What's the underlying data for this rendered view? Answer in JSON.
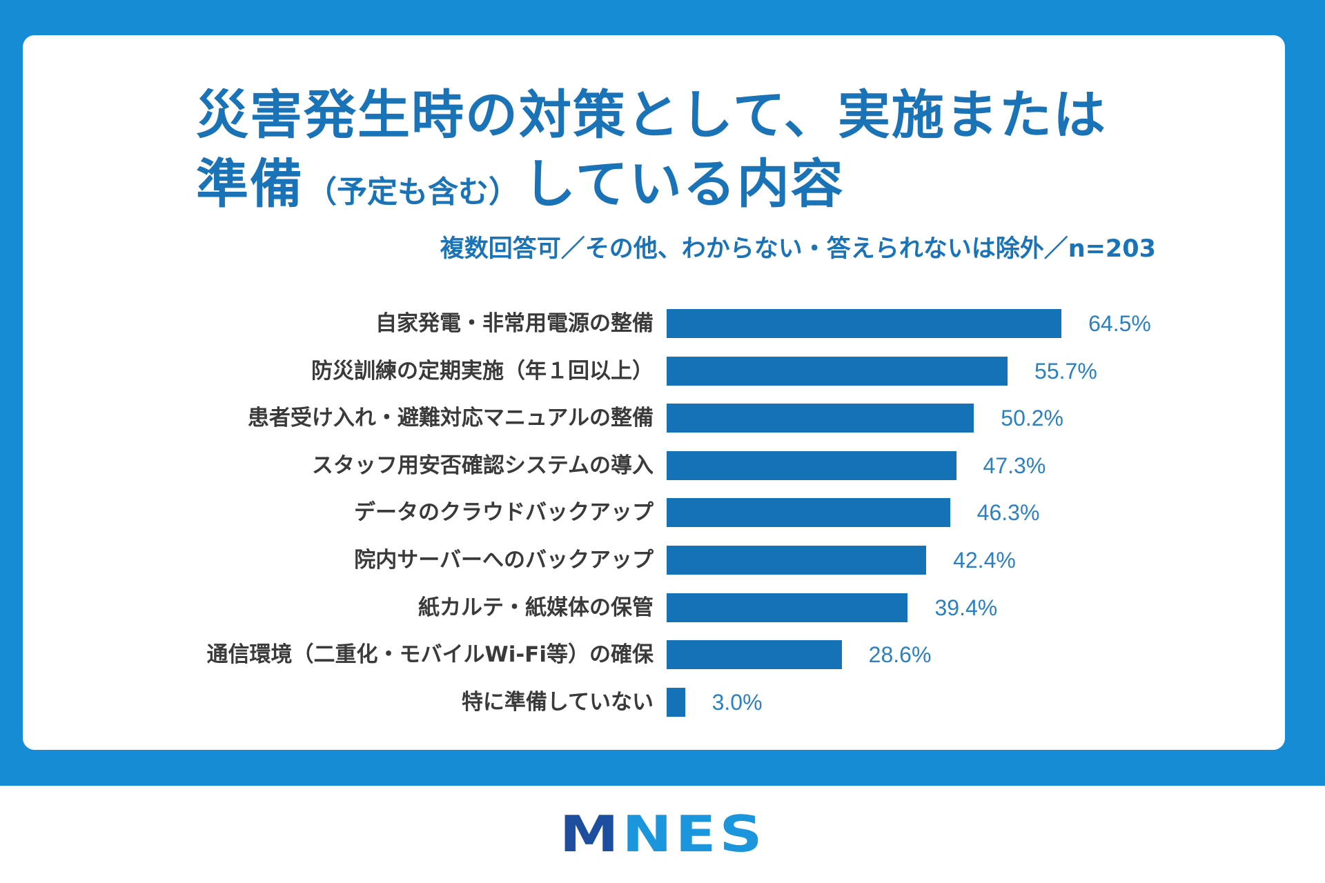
{
  "header": {
    "title_line1": "災害発生時の対策として、実施または",
    "title_line2_start": "準備",
    "title_line2_note": "（予定も含む）",
    "title_line2_end": "している内容",
    "note": "複数回答可／その他、わからない・答えられないは除外／n=203"
  },
  "chart_data": {
    "type": "bar",
    "orientation": "horizontal",
    "categories": [
      "自家発電・非常用電源の整備",
      "防災訓練の定期実施（年１回以上）",
      "患者受け入れ・避難対応マニュアルの整備",
      "スタッフ用安否確認システムの導入",
      "データのクラウドバックアップ",
      "院内サーバーへのバックアップ",
      "紙カルテ・紙媒体の保管",
      "通信環境（二重化・モバイルWi-Fi等）の確保",
      "特に準備していない"
    ],
    "values": [
      64.5,
      55.7,
      50.2,
      47.3,
      46.3,
      42.4,
      39.4,
      28.6,
      3.0
    ],
    "value_labels": [
      "64.5%",
      "55.7%",
      "50.2%",
      "47.3%",
      "46.3%",
      "42.4%",
      "39.4%",
      "28.6%",
      "3.0%"
    ],
    "xlim": [
      0,
      100
    ],
    "grid": false,
    "legend": "none"
  },
  "logo": {
    "text": "MNES"
  },
  "colors": {
    "background": "#168bd6",
    "title": "#1a73b6",
    "bar": "#1572b6",
    "value_label": "#2b80c2",
    "category_label": "#3a3a3a",
    "logo_primary": "#1d4f9e",
    "logo_secondary": "#1b95dc"
  }
}
